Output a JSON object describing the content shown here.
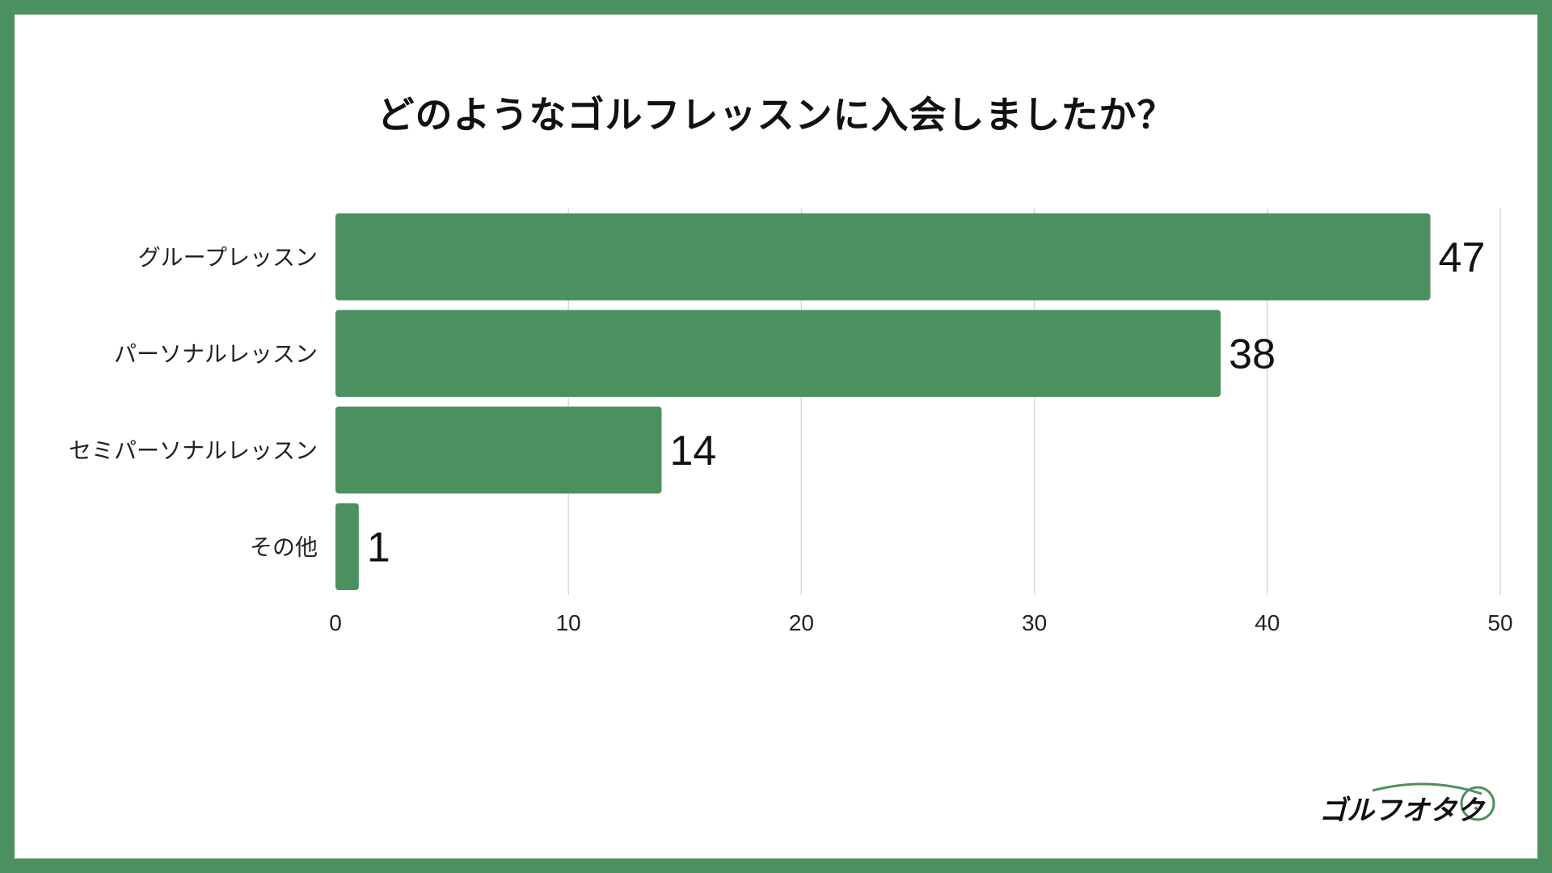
{
  "chart_data": {
    "type": "bar",
    "orientation": "horizontal",
    "title": "どのようなゴルフレッスンに入会しましたか？",
    "categories": [
      "グループレッスン",
      "パーソナルレッスン",
      "セミパーソナルレッスン",
      "その他"
    ],
    "values": [
      47,
      38,
      14,
      1
    ],
    "xlim": [
      0,
      50
    ],
    "xticks": [
      0,
      10,
      20,
      30,
      40,
      50
    ],
    "grid": true,
    "bar_color": "#4a915f",
    "grid_color": "#d9d9d9"
  },
  "brand": {
    "logo_text": "ゴルフオタク",
    "color": "#4a915f"
  }
}
